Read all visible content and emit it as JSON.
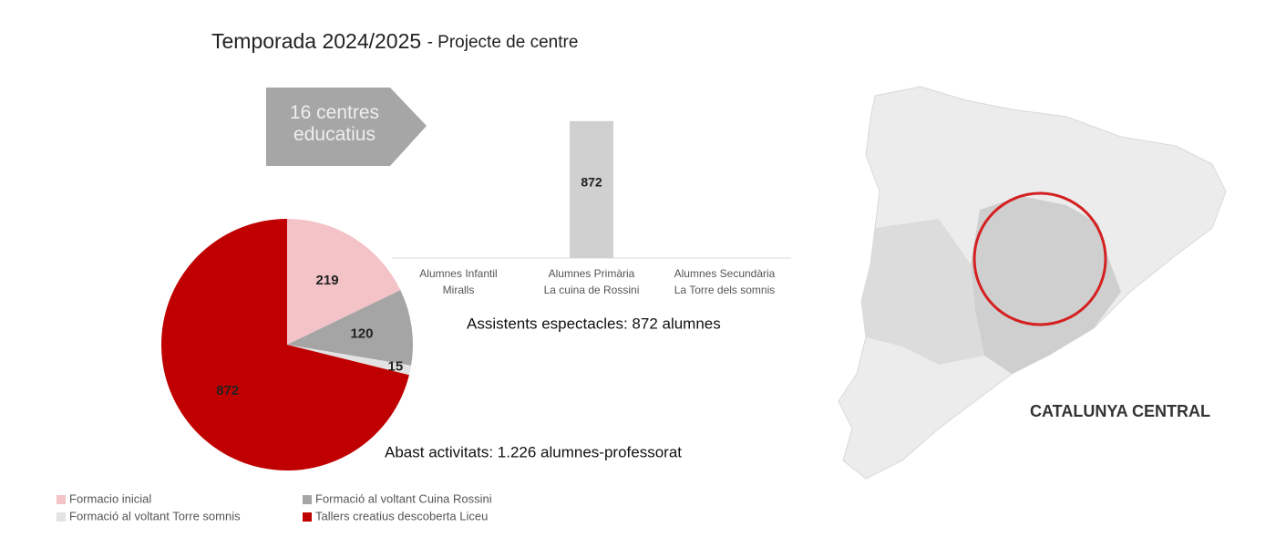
{
  "title": "Temporada 2024/2025",
  "title_suffix": "- Projecte de centre",
  "callout": "16 centres\neducatius",
  "map_label": "CATALUNYA CENTRAL",
  "chart_data": [
    {
      "type": "pie",
      "caption": "Abast activitats: 1.226 alumnes-professorat",
      "categories": [
        "Formacio inicial",
        "Formació al voltant  Cuina Rossini",
        "Formació al voltant Torre somnis",
        "Tallers creatius descoberta Liceu"
      ],
      "values": [
        219,
        120,
        15,
        872
      ],
      "colors": [
        "#f3c3c8",
        "#a5a5a5",
        "#e3e3e3",
        "#c00000"
      ],
      "legend": "bottom"
    },
    {
      "type": "bar",
      "caption": "Assistents espectacles: 872 alumnes",
      "categories": [
        "Alumnes Infantil\nMiralls",
        "Alumnes Primària\nLa cuina de Rossini",
        "Alumnes Secundària\nLa Torre dels somnis"
      ],
      "values": [
        0,
        872,
        0
      ],
      "color": "#d0d0d0",
      "ylim": [
        0,
        900
      ]
    }
  ]
}
